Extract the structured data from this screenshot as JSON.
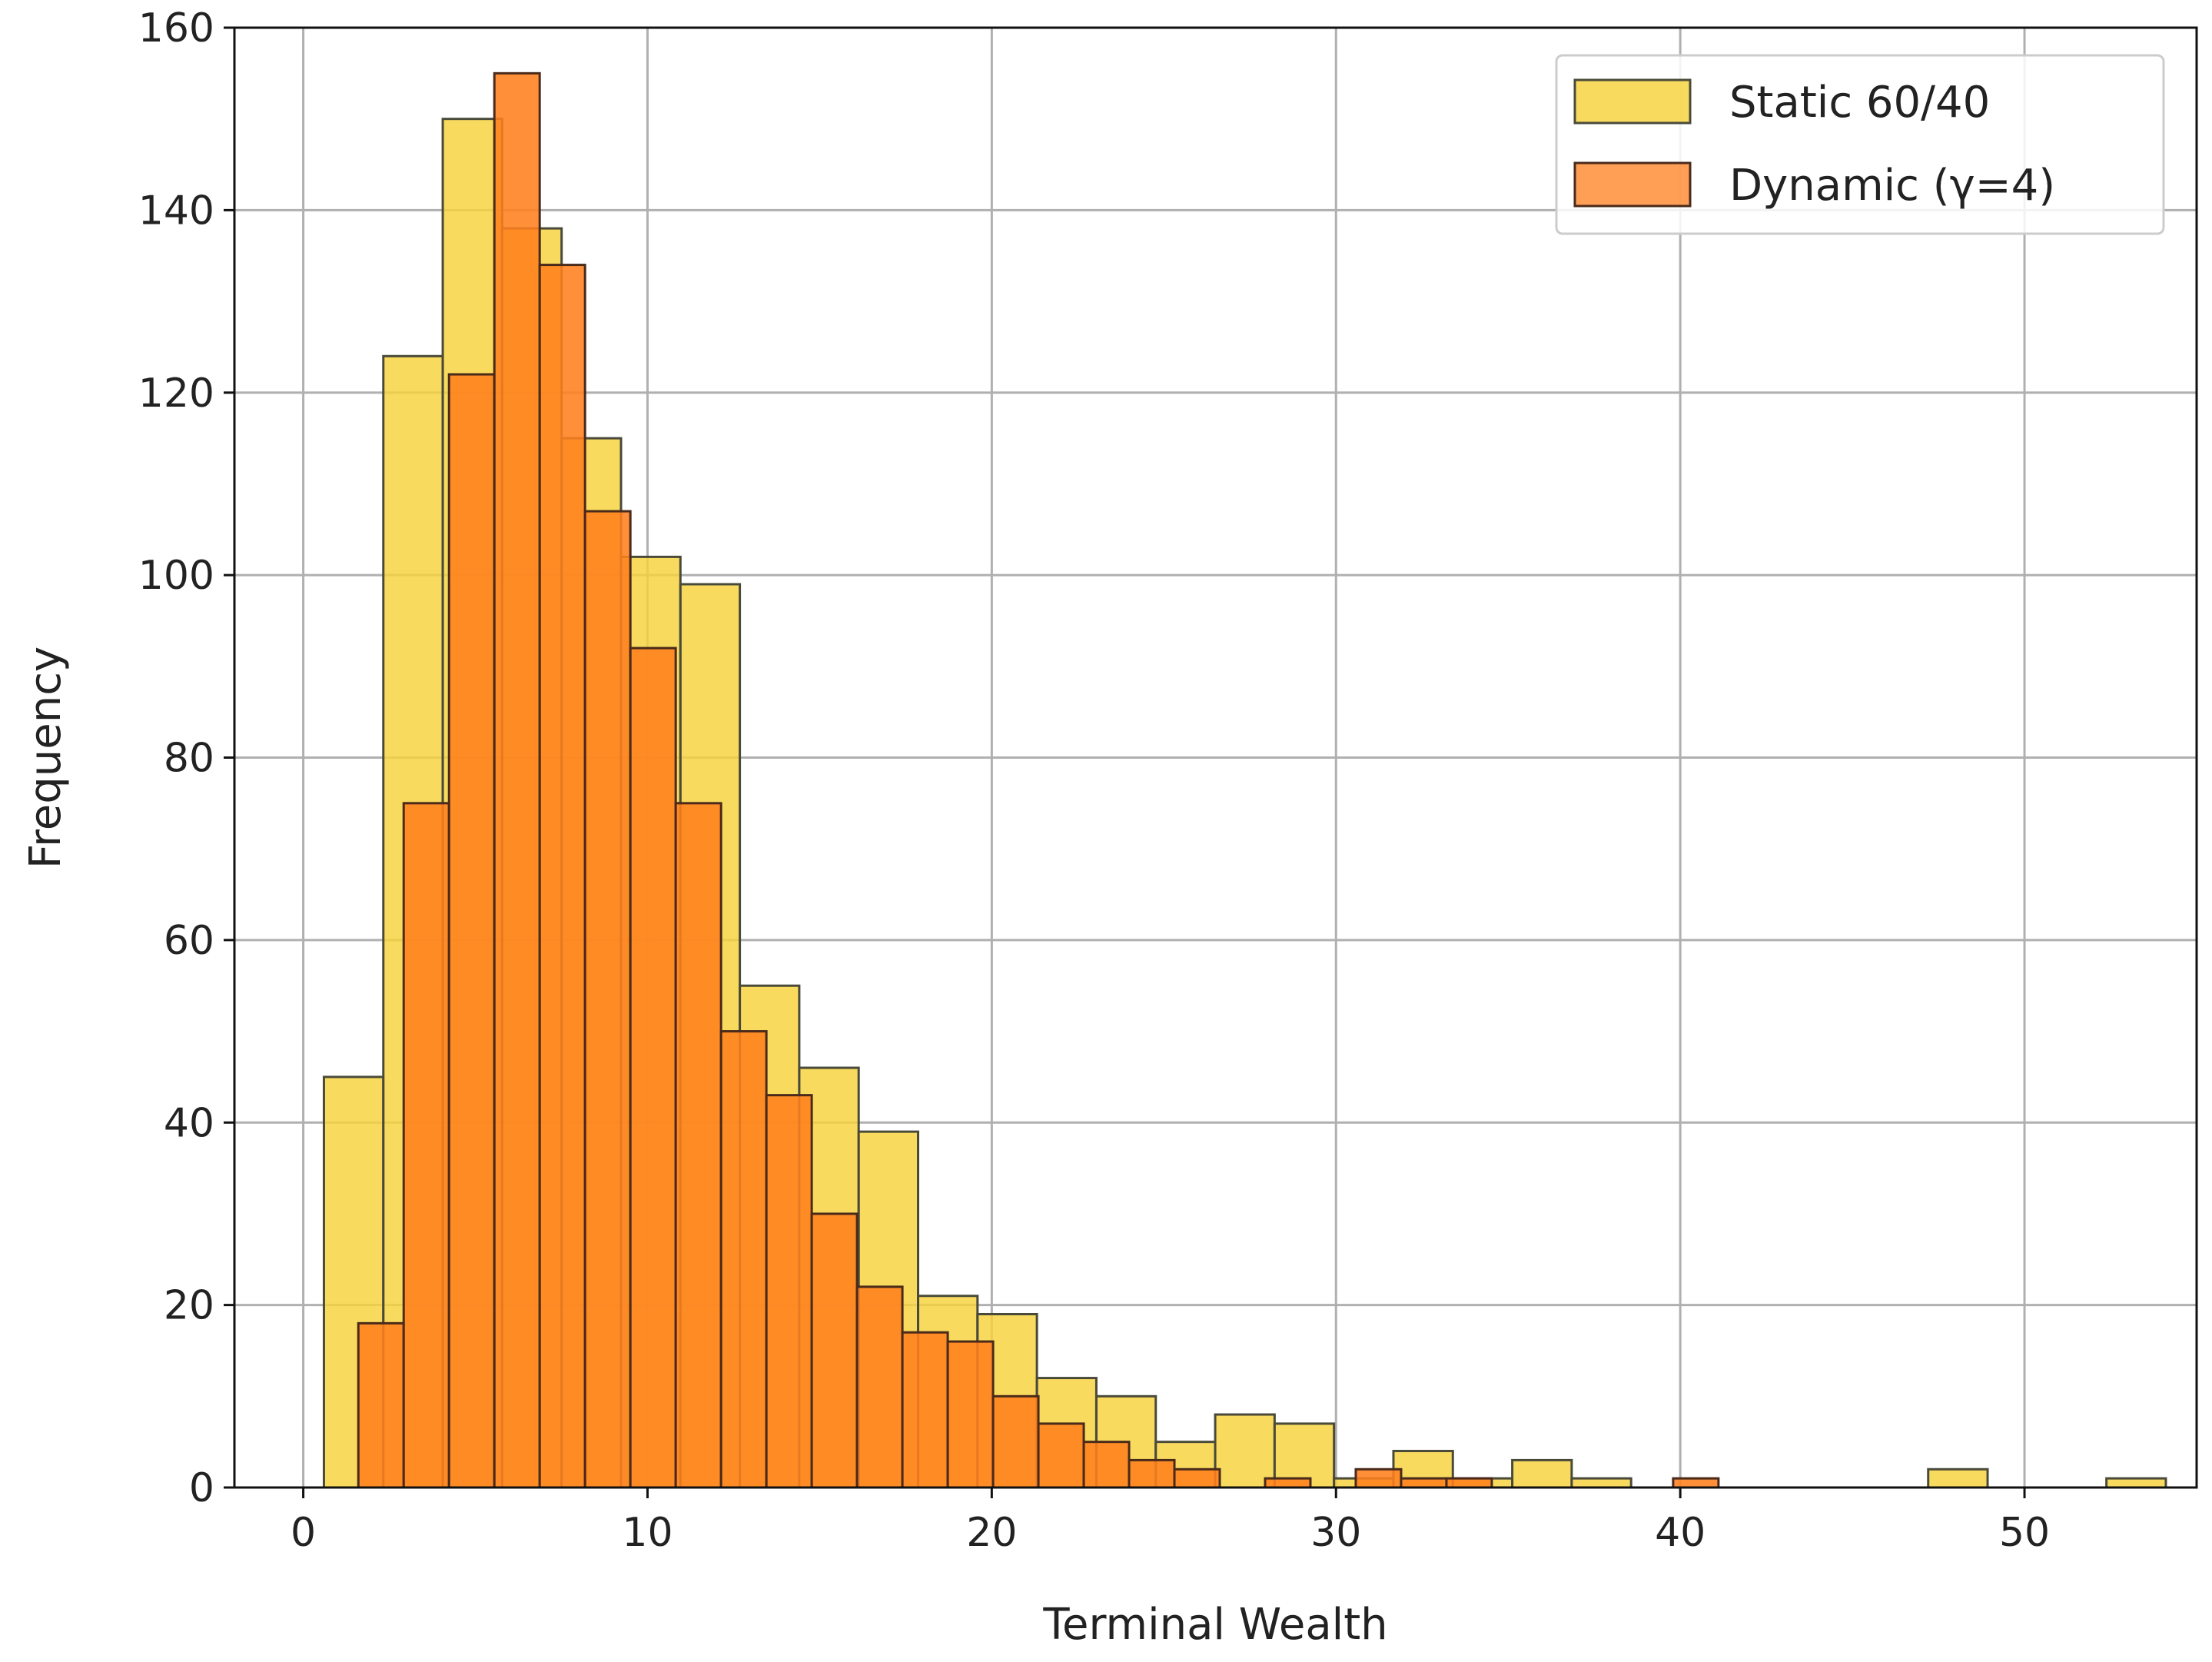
{
  "chart_data": {
    "type": "bar",
    "subtype": "overlaid-histogram",
    "title": "",
    "xlabel": "Terminal Wealth",
    "ylabel": "Frequency",
    "xlim": [
      -2,
      55
    ],
    "ylim": [
      0,
      160
    ],
    "xticks": [
      0,
      10,
      20,
      30,
      40,
      50
    ],
    "yticks": [
      0,
      20,
      40,
      60,
      80,
      100,
      120,
      140,
      160
    ],
    "grid": true,
    "legend_position": "top-right",
    "series": [
      {
        "name": "Static 60/40",
        "color": "#f7d33a",
        "edge_color": "#4a4a3a",
        "bin_start": 0.6,
        "bin_width": 1.726,
        "values": [
          45,
          124,
          150,
          138,
          115,
          102,
          99,
          55,
          46,
          39,
          21,
          19,
          12,
          10,
          5,
          8,
          7,
          1,
          4,
          1,
          3,
          1,
          0,
          0,
          0,
          0,
          0,
          2,
          0,
          0,
          1
        ]
      },
      {
        "name": "Dynamic (γ=4)",
        "color": "#ff7f1e",
        "edge_color": "#4a2a1a",
        "bin_start": 1.6,
        "bin_width": 1.317,
        "values": [
          18,
          75,
          122,
          155,
          134,
          107,
          92,
          75,
          50,
          43,
          30,
          22,
          17,
          16,
          10,
          7,
          5,
          3,
          2,
          0,
          1,
          0,
          2,
          1,
          1,
          0,
          0,
          0,
          0,
          1
        ]
      }
    ]
  }
}
